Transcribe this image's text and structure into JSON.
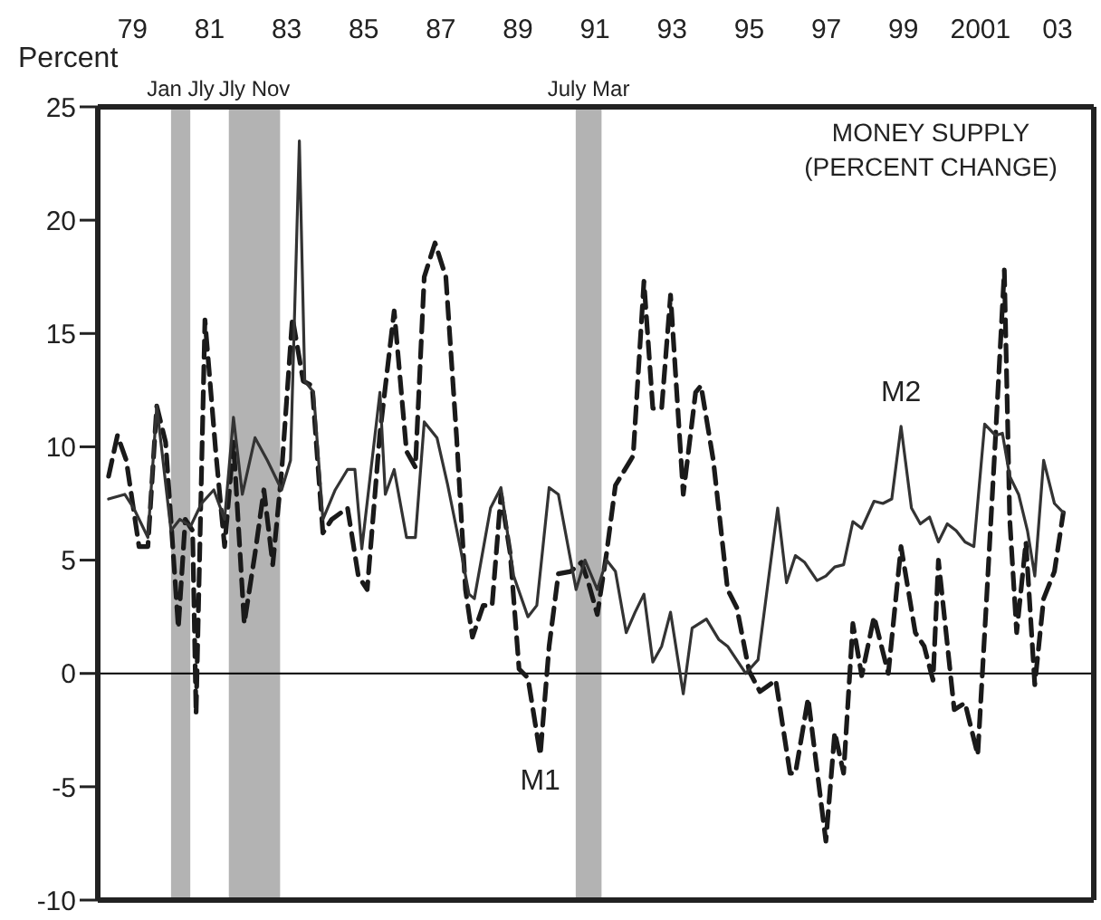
{
  "chart_data": {
    "type": "line",
    "title": "MONEY SUPPLY (PERCENT CHANGE)",
    "ylabel": "Percent",
    "xlim": [
      1978.1,
      2003.94
    ],
    "xticks": [
      {
        "value": 1979,
        "label": "79"
      },
      {
        "value": 1981,
        "label": "81"
      },
      {
        "value": 1983,
        "label": "83"
      },
      {
        "value": 1985,
        "label": "85"
      },
      {
        "value": 1987,
        "label": "87"
      },
      {
        "value": 1989,
        "label": "89"
      },
      {
        "value": 1991,
        "label": "91"
      },
      {
        "value": 1993,
        "label": "93"
      },
      {
        "value": 1995,
        "label": "95"
      },
      {
        "value": 1997,
        "label": "97"
      },
      {
        "value": 1999,
        "label": "99"
      },
      2001,
      {
        "value": 2003,
        "label": "03"
      }
    ],
    "ylim": [
      -10,
      25
    ],
    "yticks": [
      -10,
      -5,
      0,
      5,
      10,
      15,
      20,
      25
    ],
    "grid": false,
    "legend": false,
    "marker": "none",
    "bands": [
      {
        "axis": "x",
        "from": 1980.0,
        "to": 1980.5,
        "label": "Jan Jly",
        "color": "#b3b3b3"
      },
      {
        "axis": "x",
        "from": 1981.5,
        "to": 1982.83,
        "label": "Jly Nov",
        "color": "#b3b3b3"
      },
      {
        "axis": "x",
        "from": 1990.5,
        "to": 1991.17,
        "label": "July Mar",
        "color": "#b3b3b3"
      }
    ],
    "ref_lines": [
      {
        "axis": "y",
        "value": 0,
        "color": "#000000"
      }
    ],
    "series": [
      {
        "name": "M1",
        "color": "#1a1a1a",
        "line_style": "dashed",
        "x": [
          1978.38,
          1978.61,
          1978.84,
          1979.17,
          1979.4,
          1979.63,
          1979.86,
          1980.19,
          1980.37,
          1980.56,
          1980.65,
          1980.88,
          1981.16,
          1981.39,
          1981.62,
          1981.9,
          1982.18,
          1982.41,
          1982.64,
          1982.87,
          1983.15,
          1983.43,
          1983.66,
          1983.94,
          1984.17,
          1984.58,
          1984.86,
          1985.09,
          1985.42,
          1985.79,
          1986.11,
          1986.34,
          1986.57,
          1986.85,
          1987.13,
          1987.41,
          1987.64,
          1987.82,
          1988.1,
          1988.33,
          1988.56,
          1988.8,
          1989.03,
          1989.26,
          1989.58,
          1989.81,
          1990.05,
          1990.37,
          1990.65,
          1990.83,
          1991.06,
          1991.3,
          1991.53,
          1991.99,
          1992.27,
          1992.5,
          1992.73,
          1992.96,
          1993.29,
          1993.61,
          1993.75,
          1994.07,
          1994.44,
          1994.68,
          1995.0,
          1995.28,
          1995.69,
          1996.06,
          1996.2,
          1996.53,
          1996.99,
          1997.22,
          1997.45,
          1997.69,
          1997.92,
          1998.24,
          1998.61,
          1998.94,
          1999.31,
          1999.54,
          1999.77,
          1999.91,
          2000.32,
          2000.6,
          2000.93,
          2001.16,
          2001.39,
          2001.62,
          2001.76,
          2001.94,
          2002.18,
          2002.41,
          2002.64,
          2002.92,
          2003.15
        ],
        "values": [
          8.7,
          10.5,
          9.4,
          5.6,
          5.6,
          11.8,
          10.2,
          2.0,
          6.8,
          6.3,
          -1.8,
          15.6,
          9.8,
          5.6,
          10.2,
          2.2,
          5.3,
          8.1,
          4.8,
          8.9,
          15.7,
          12.9,
          12.7,
          6.2,
          6.8,
          7.3,
          4.3,
          3.7,
          10.6,
          16.0,
          9.8,
          9.1,
          17.5,
          19.0,
          17.5,
          10.4,
          3.7,
          1.6,
          3.0,
          3.0,
          7.9,
          5.3,
          0.2,
          -0.2,
          -3.6,
          1.2,
          4.4,
          4.5,
          4.9,
          4.0,
          2.6,
          5.3,
          8.3,
          9.6,
          17.3,
          11.7,
          11.7,
          16.7,
          7.9,
          12.4,
          12.7,
          9.4,
          3.7,
          2.9,
          0.1,
          -0.8,
          -0.3,
          -4.4,
          -4.4,
          -1.1,
          -7.4,
          -2.6,
          -4.4,
          2.2,
          -0.1,
          2.5,
          0.0,
          5.6,
          1.8,
          1.2,
          -0.3,
          5.0,
          -1.6,
          -1.3,
          -3.6,
          3.3,
          10.4,
          17.8,
          6.8,
          1.8,
          5.8,
          -0.5,
          3.3,
          4.5,
          7.1
        ]
      },
      {
        "name": "M2",
        "color": "#333333",
        "line_style": "solid",
        "x": [
          1978.38,
          1978.8,
          1979.03,
          1979.4,
          1979.63,
          1980.0,
          1980.23,
          1980.51,
          1980.79,
          1981.11,
          1981.39,
          1981.62,
          1981.85,
          1982.18,
          1982.5,
          1982.87,
          1983.1,
          1983.33,
          1983.47,
          1983.7,
          1983.94,
          1984.26,
          1984.58,
          1984.77,
          1984.95,
          1985.42,
          1985.56,
          1985.79,
          1986.11,
          1986.34,
          1986.57,
          1986.9,
          1987.18,
          1987.5,
          1987.73,
          1987.87,
          1988.29,
          1988.56,
          1988.89,
          1989.26,
          1989.49,
          1989.81,
          1990.05,
          1990.51,
          1990.74,
          1991.06,
          1991.3,
          1991.53,
          1991.81,
          1992.04,
          1992.27,
          1992.5,
          1992.73,
          1992.96,
          1993.29,
          1993.52,
          1993.89,
          1994.21,
          1994.44,
          1994.91,
          1995.23,
          1995.74,
          1995.97,
          1996.2,
          1996.44,
          1996.76,
          1996.99,
          1997.22,
          1997.45,
          1997.69,
          1997.92,
          1998.24,
          1998.47,
          1998.7,
          1998.94,
          1999.21,
          1999.44,
          1999.68,
          1999.91,
          2000.14,
          2000.37,
          2000.6,
          2000.83,
          2001.11,
          2001.39,
          2001.57,
          2001.76,
          2001.99,
          2002.22,
          2002.41,
          2002.64,
          2002.92,
          2003.15
        ],
        "values": [
          7.7,
          7.9,
          7.3,
          6.0,
          11.8,
          6.3,
          6.8,
          6.5,
          7.5,
          8.1,
          6.8,
          11.3,
          7.9,
          10.4,
          9.4,
          8.1,
          9.4,
          23.5,
          12.9,
          12.4,
          6.8,
          8.1,
          9.0,
          9.0,
          5.5,
          12.4,
          7.9,
          9.0,
          6.0,
          6.0,
          11.1,
          10.4,
          8.3,
          5.6,
          3.5,
          3.3,
          7.3,
          8.2,
          4.3,
          2.5,
          3.0,
          8.2,
          7.9,
          3.7,
          5.0,
          3.7,
          5.0,
          4.5,
          1.8,
          2.7,
          3.5,
          0.5,
          1.2,
          2.7,
          -0.9,
          2.0,
          2.4,
          1.5,
          1.2,
          0.0,
          0.6,
          7.3,
          4.0,
          5.2,
          4.9,
          4.1,
          4.3,
          4.7,
          4.8,
          6.7,
          6.4,
          7.6,
          7.5,
          7.7,
          10.9,
          7.3,
          6.6,
          6.9,
          5.8,
          6.6,
          6.3,
          5.8,
          5.6,
          11.0,
          10.5,
          10.6,
          8.7,
          7.9,
          6.3,
          4.3,
          9.4,
          7.5,
          7.1
        ]
      }
    ]
  }
}
